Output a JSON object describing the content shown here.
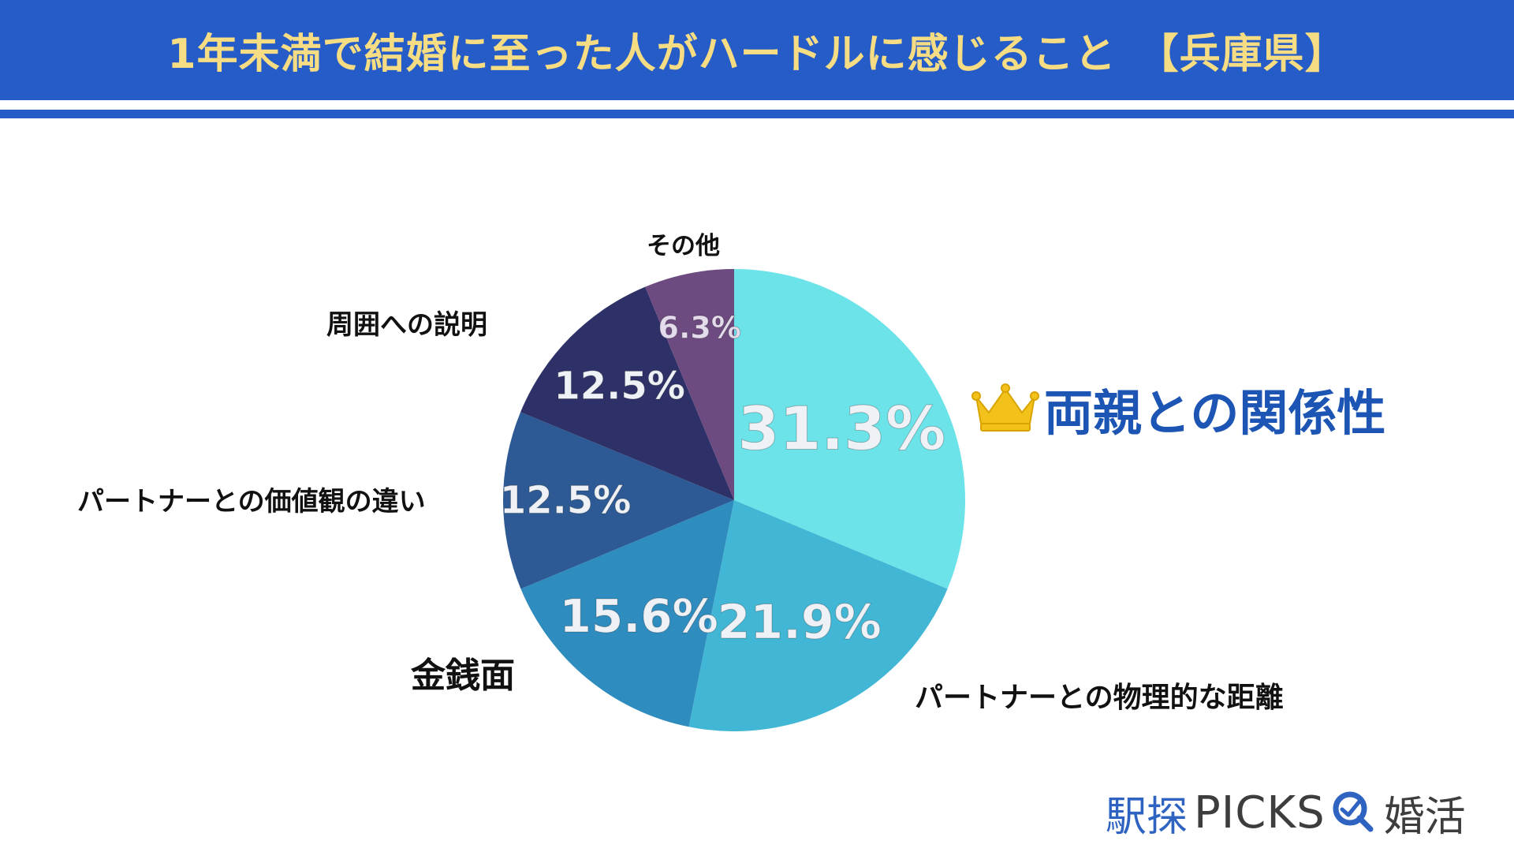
{
  "header": {
    "title": "1年未満で結婚に至った人がハードルに感じること　【兵庫県】"
  },
  "chart_data": {
    "type": "pie",
    "title": "1年未満で結婚に至った人がハードルに感じること　【兵庫県】",
    "slices": [
      {
        "label": "両親との関係性",
        "value": 31.3,
        "display": "31.3%",
        "color": "#6ce3e8",
        "highlight": true
      },
      {
        "label": "パートナーとの物理的な距離",
        "value": 21.9,
        "display": "21.9%",
        "color": "#41b6d5"
      },
      {
        "label": "金銭面",
        "value": 15.6,
        "display": "15.6%",
        "color": "#2e8cbf"
      },
      {
        "label": "パートナーとの価値観の違い",
        "value": 12.5,
        "display": "12.5%",
        "color": "#2d5a94"
      },
      {
        "label": "周囲への説明",
        "value": 12.5,
        "display": "12.5%",
        "color": "#2d3167"
      },
      {
        "label": "その他",
        "value": 6.3,
        "display": "6.3%",
        "color": "#6d4b80"
      }
    ]
  },
  "logo": {
    "kanji": "駅探",
    "picks": "PICKS",
    "konkatsu": "婚活"
  },
  "icons": {
    "winner": "crown-icon",
    "logo_mark": "magnifier-q-icon"
  }
}
